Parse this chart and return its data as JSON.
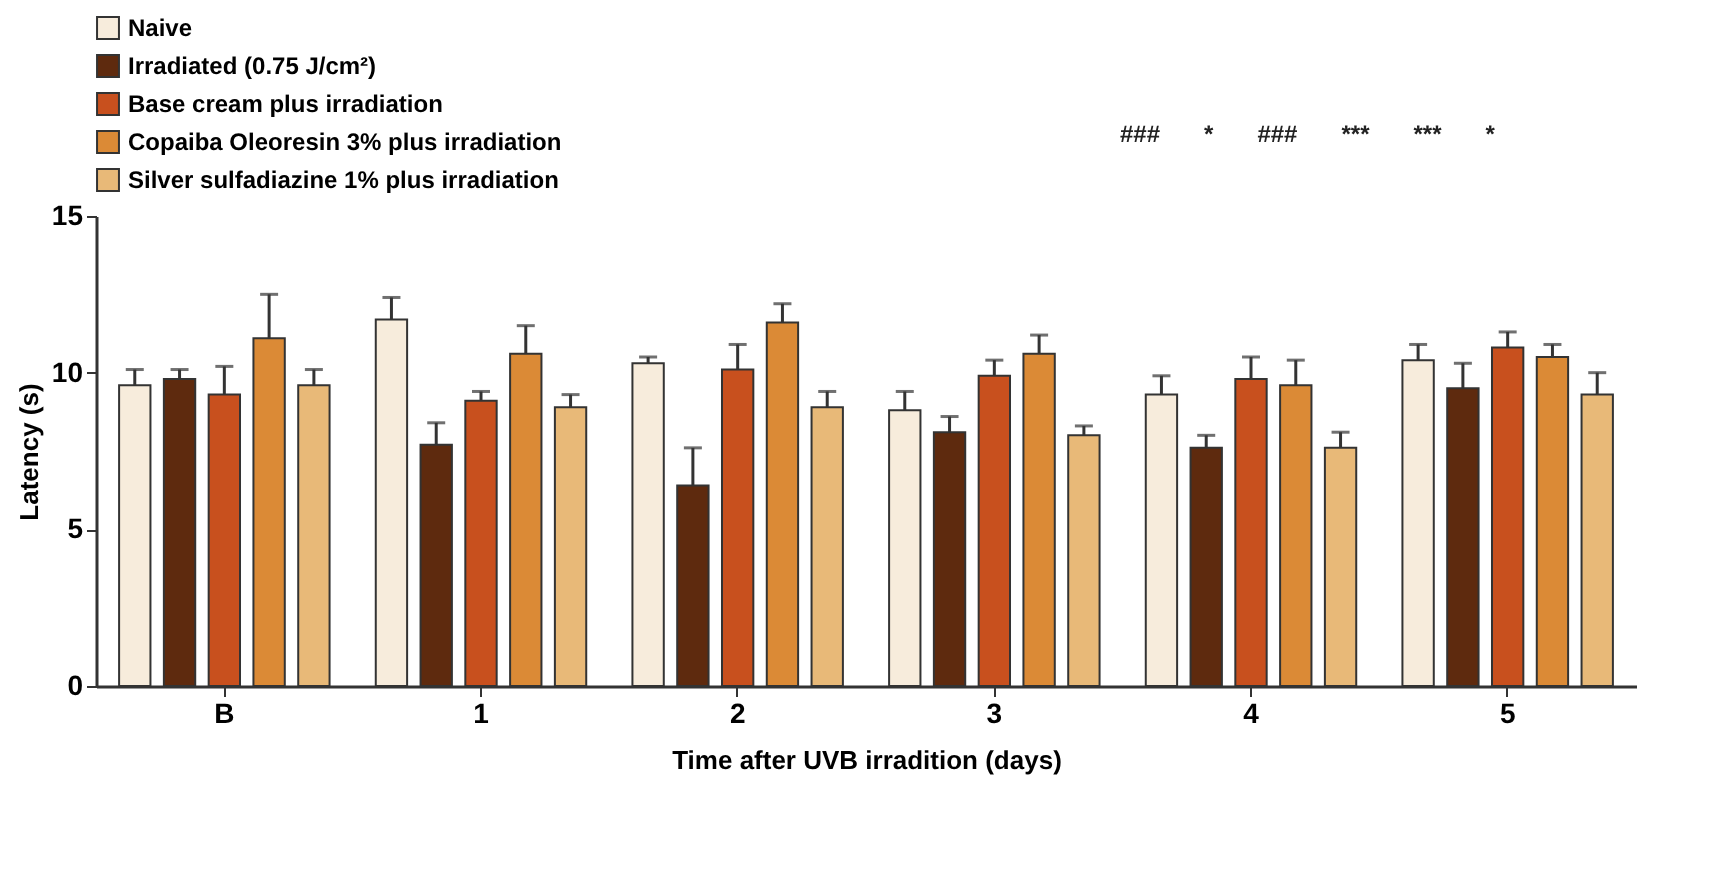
{
  "chart_data": {
    "type": "bar",
    "xlabel": "Time after UVB irradition (days)",
    "ylabel": "Latency (s)",
    "categories": [
      "B",
      "1",
      "2",
      "3",
      "4",
      "5"
    ],
    "series": [
      {
        "name": "Naive",
        "color": "#f7ecdc",
        "values": [
          9.6,
          11.7,
          10.3,
          8.8,
          9.3,
          10.4
        ],
        "errors": [
          0.5,
          0.7,
          0.2,
          0.6,
          0.6,
          0.5
        ]
      },
      {
        "name": "Irradiated (0.75 J/cm²)",
        "color": "#5e2a0e",
        "values": [
          9.8,
          7.7,
          6.4,
          8.1,
          7.6,
          9.5
        ],
        "errors": [
          0.3,
          0.7,
          1.2,
          0.5,
          0.4,
          0.8
        ]
      },
      {
        "name": "Base cream plus irradiation",
        "color": "#c8501e",
        "values": [
          9.3,
          9.1,
          10.1,
          9.9,
          9.8,
          10.8
        ],
        "errors": [
          0.9,
          0.3,
          0.8,
          0.5,
          0.7,
          0.5
        ]
      },
      {
        "name": "Copaiba Oleoresin 3% plus irradiation",
        "color": "#db8a36",
        "values": [
          11.1,
          10.6,
          11.6,
          10.6,
          9.6,
          10.5
        ],
        "errors": [
          1.4,
          0.9,
          0.6,
          0.6,
          0.8,
          0.4
        ]
      },
      {
        "name": "Silver sulfadiazine 1% plus irradiation",
        "color": "#e8b978",
        "values": [
          9.6,
          8.9,
          8.9,
          8.0,
          7.6,
          9.3
        ],
        "errors": [
          0.5,
          0.4,
          0.5,
          0.3,
          0.5,
          0.7
        ]
      }
    ],
    "ylim": [
      0,
      15
    ],
    "yticks": [
      0,
      5,
      10,
      15
    ],
    "grid": false,
    "legend": "top left",
    "annotations": [
      "###",
      "*",
      "###",
      "***",
      "***",
      "*"
    ]
  }
}
